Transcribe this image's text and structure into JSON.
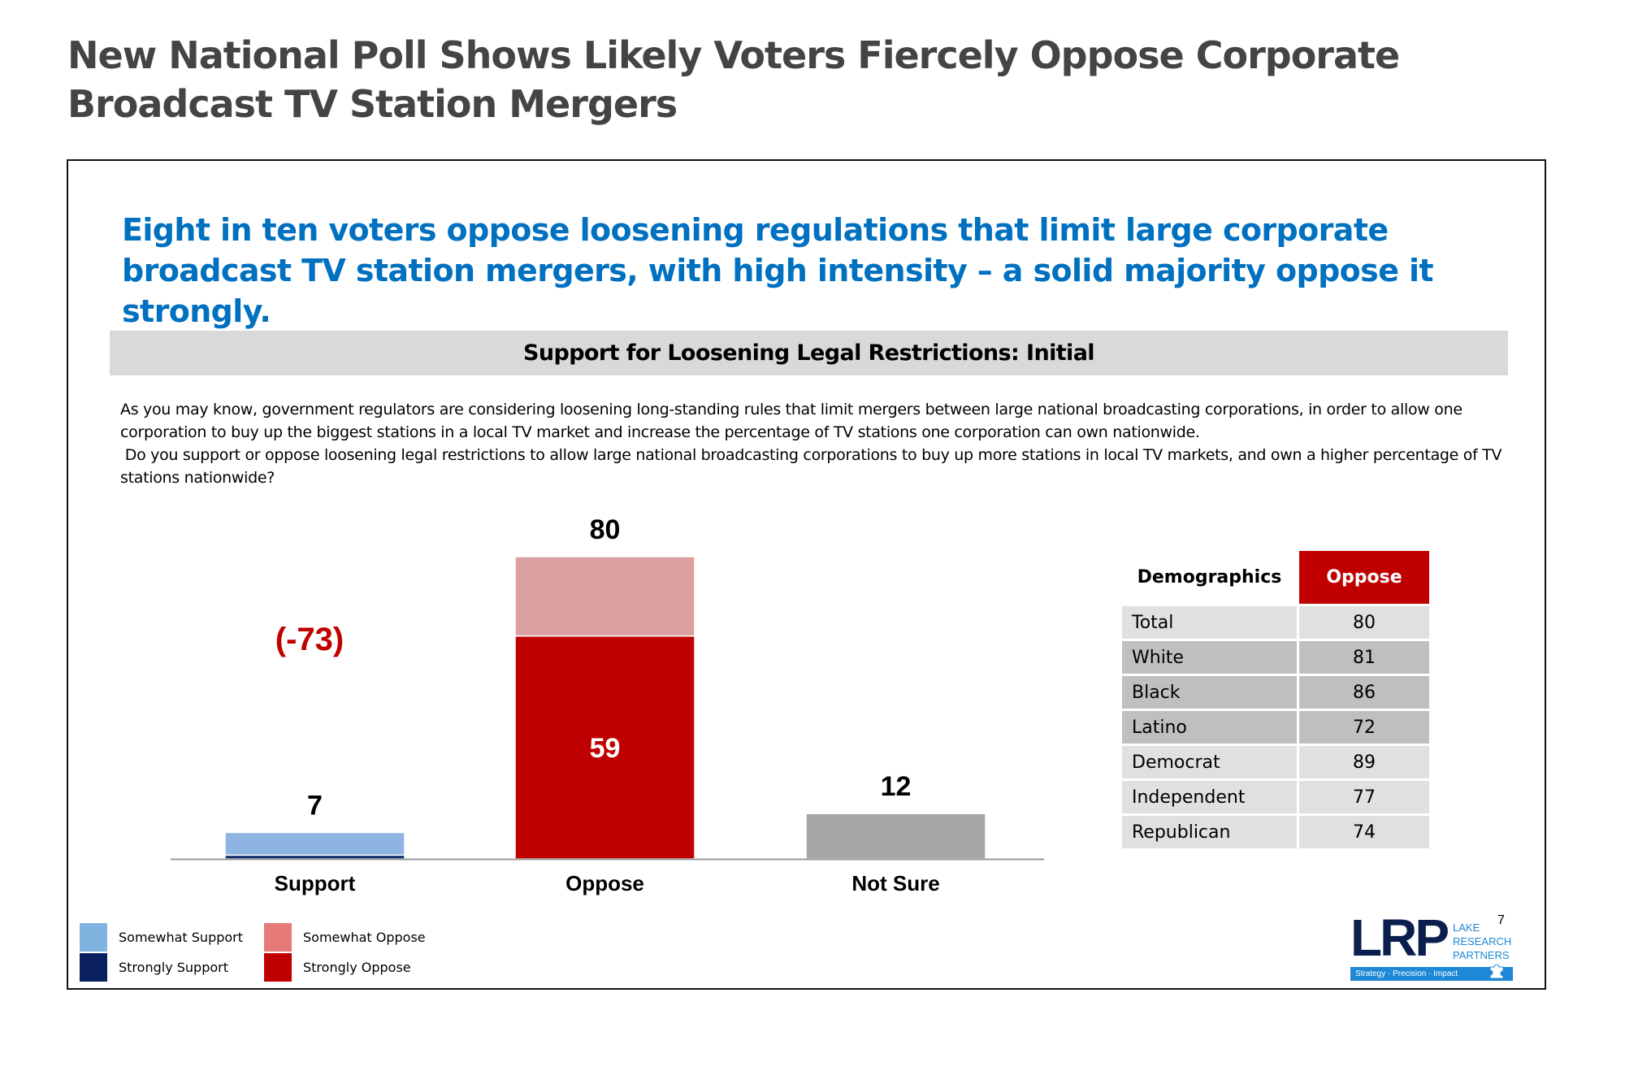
{
  "page": {
    "title": "New National Poll Shows Likely Voters Fiercely Oppose Corporate Broadcast TV Station Mergers"
  },
  "slide": {
    "headline": "Eight in ten voters oppose loosening regulations that limit large corporate broadcast TV station mergers, with high intensity – a solid majority oppose it strongly.",
    "chart_header": "Support for Loosening Legal Restrictions: Initial",
    "question_lines": [
      "As you may know, government regulators are considering loosening long-standing rules that limit mergers between large national broadcasting corporations, in order to allow one corporation to buy up the biggest stations in a local TV market and increase the percentage of TV stations one corporation can own nationwide.",
      " Do you support or oppose loosening legal restrictions to allow large national broadcasting corporations to buy up more stations in local TV markets, and own a higher percentage of TV stations nationwide?"
    ],
    "page_number": "7",
    "logo": {
      "mark": "LRP",
      "words": [
        "LAKE",
        "RESEARCH",
        "PARTNERS"
      ],
      "tagline": "Strategy · Precision · Impact",
      "icon": "puzzle-piece-icon"
    }
  },
  "chart_data": [
    {
      "type": "bar",
      "stacked": true,
      "title": "Support for Loosening Legal Restrictions: Initial",
      "categories": [
        "Support",
        "Oppose",
        "Not Sure"
      ],
      "totals": [
        7,
        80,
        12
      ],
      "net_label": "(-73)",
      "ylim": [
        0,
        80
      ],
      "grid": false,
      "xlabel": "",
      "ylabel": "",
      "series": [
        {
          "name": "Strongly Support",
          "color": "#0F2D6B",
          "values": [
            1,
            0,
            0
          ]
        },
        {
          "name": "Somewhat Support",
          "color": "#8EB4E3",
          "values": [
            6,
            0,
            0
          ]
        },
        {
          "name": "Strongly Oppose",
          "color": "#C00000",
          "values": [
            0,
            59,
            0
          ],
          "label_values": [
            null,
            "59",
            null
          ]
        },
        {
          "name": "Somewhat Oppose",
          "color": "#DC9F9F",
          "values": [
            0,
            21,
            0
          ]
        },
        {
          "name": "Not Sure",
          "color": "#A6A6A6",
          "values": [
            0,
            0,
            12
          ]
        }
      ],
      "legend": {
        "placement": "bottom-left",
        "items": [
          {
            "label": "Somewhat Support",
            "color": "#7FB3E0"
          },
          {
            "label": "Somewhat Oppose",
            "color": "#E57A78"
          },
          {
            "label": "Strongly Support",
            "color": "#0A2060"
          },
          {
            "label": "Strongly Oppose",
            "color": "#C00000"
          }
        ]
      },
      "colors": {
        "net_label": "#C00000",
        "axis": "#999999"
      }
    },
    {
      "type": "table",
      "columns": [
        "Demographics",
        "Oppose"
      ],
      "rows": [
        {
          "label": "Total",
          "value": "80",
          "shade": "light"
        },
        {
          "label": "White",
          "value": "81",
          "shade": "dark"
        },
        {
          "label": "Black",
          "value": "86",
          "shade": "dark"
        },
        {
          "label": "Latino",
          "value": "72",
          "shade": "dark"
        },
        {
          "label": "Democrat",
          "value": "89",
          "shade": "light"
        },
        {
          "label": "Independent",
          "value": "77",
          "shade": "light"
        },
        {
          "label": "Republican",
          "value": "74",
          "shade": "light"
        }
      ],
      "header_color": "#C00000"
    }
  ]
}
